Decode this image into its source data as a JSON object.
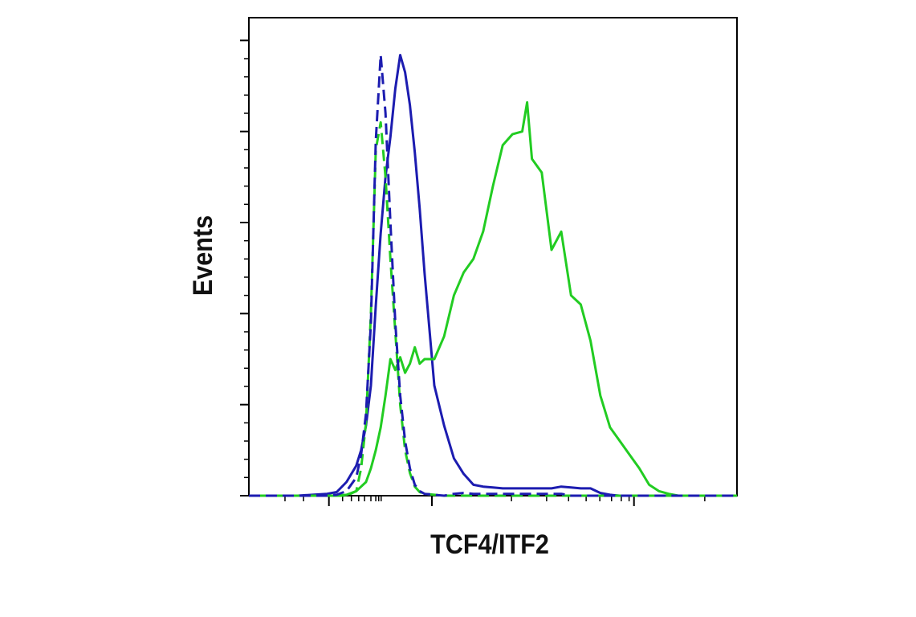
{
  "chart_data": {
    "type": "line",
    "x_label": "TCF4/ITF2",
    "y_label": "Events",
    "x": [
      0,
      10,
      16,
      18,
      20,
      22,
      23,
      24,
      25,
      26,
      27,
      28,
      29,
      30,
      31,
      32,
      33,
      34,
      35,
      36,
      38,
      40,
      42,
      44,
      46,
      48,
      50,
      52,
      54,
      56,
      57,
      58,
      60,
      62,
      64,
      66,
      68,
      70,
      72,
      74,
      76,
      78,
      80,
      82,
      84,
      86,
      88,
      90,
      95,
      100
    ],
    "series": [
      {
        "color": "#1c1cb0",
        "dash": false,
        "values": [
          0,
          0,
          0.02,
          0.04,
          0.15,
          0.33,
          0.5,
          0.77,
          1.21,
          2.09,
          2.88,
          3.5,
          3.94,
          4.47,
          4.84,
          4.65,
          4.29,
          3.77,
          3.15,
          2.44,
          1.21,
          0.77,
          0.41,
          0.24,
          0.12,
          0.1,
          0.09,
          0.08,
          0.08,
          0.08,
          0.08,
          0.08,
          0.08,
          0.08,
          0.1,
          0.09,
          0.08,
          0.08,
          0.03,
          0.01,
          0,
          0,
          0,
          0,
          0,
          0,
          0,
          0,
          0,
          0
        ]
      },
      {
        "color": "#22cc22",
        "dash": false,
        "values": [
          0,
          0,
          0,
          0,
          0.01,
          0.05,
          0.1,
          0.15,
          0.3,
          0.5,
          0.75,
          1.1,
          1.5,
          1.38,
          1.52,
          1.35,
          1.45,
          1.63,
          1.45,
          1.5,
          1.5,
          1.75,
          2.2,
          2.45,
          2.6,
          2.9,
          3.4,
          3.85,
          3.97,
          4.0,
          4.32,
          3.7,
          3.55,
          2.7,
          2.9,
          2.2,
          2.1,
          1.7,
          1.1,
          0.75,
          0.6,
          0.45,
          0.3,
          0.12,
          0.05,
          0.02,
          0,
          0,
          0,
          0
        ]
      },
      {
        "color": "#22cc22",
        "dash": true,
        "values": [
          0,
          0,
          0,
          0,
          0,
          0.05,
          0.3,
          0.8,
          2.0,
          3.8,
          4.1,
          3.5,
          2.6,
          1.8,
          1.0,
          0.5,
          0.25,
          0.1,
          0.04,
          0.02,
          0.01,
          0,
          0,
          0,
          0,
          0,
          0,
          0,
          0,
          0,
          0,
          0,
          0,
          0,
          0,
          0,
          0,
          0,
          0,
          0,
          0,
          0,
          0,
          0,
          0,
          0,
          0,
          0,
          0,
          0
        ]
      },
      {
        "color": "#1c1cb0",
        "dash": true,
        "values": [
          0,
          0,
          0,
          0.01,
          0.05,
          0.2,
          0.45,
          0.9,
          1.9,
          3.9,
          4.84,
          4.2,
          3.0,
          1.9,
          1.1,
          0.6,
          0.3,
          0.12,
          0.05,
          0.02,
          0.01,
          0,
          0.02,
          0.03,
          0.02,
          0.02,
          0.02,
          0.02,
          0.02,
          0.02,
          0.02,
          0.02,
          0.02,
          0.02,
          0.02,
          0,
          0,
          0,
          0,
          0,
          0,
          0,
          0,
          0,
          0,
          0,
          0,
          0,
          0,
          0
        ]
      }
    ],
    "xlim": [
      0,
      100
    ],
    "ylim": [
      0,
      5.25
    ],
    "xticks": [
      16.4,
      37.5,
      78.9
    ],
    "xminorticks": [
      7.4,
      11.2,
      19.2,
      21.0,
      22.5,
      23.7,
      25.0,
      26.0,
      26.6,
      27.1,
      53.8,
      61.0,
      65.5,
      69.1,
      71.9,
      74.3,
      76.3,
      77.9,
      93.4
    ],
    "yticks": [
      0,
      1,
      2,
      3,
      4,
      5
    ],
    "yminorticks": [
      0.2,
      0.4,
      0.6,
      0.8,
      1.2,
      1.4,
      1.6,
      1.8,
      2.2,
      2.4,
      2.6,
      2.8,
      3.2,
      3.4,
      3.6,
      3.8,
      4.2,
      4.4,
      4.6,
      4.8
    ]
  }
}
